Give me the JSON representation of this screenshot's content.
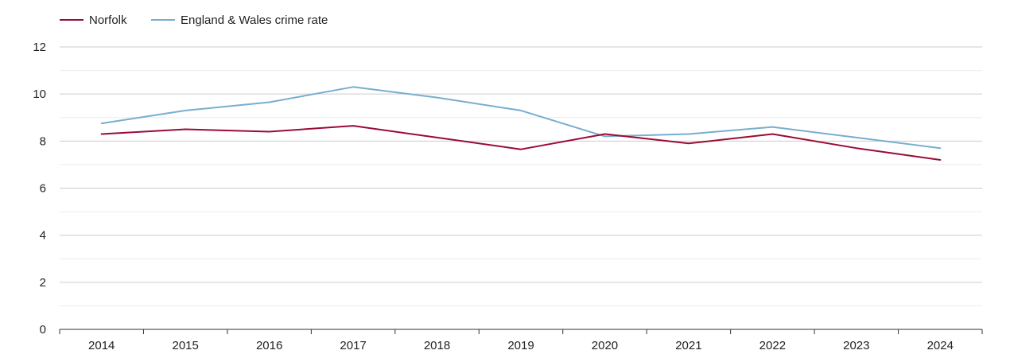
{
  "chart_data": {
    "type": "line",
    "title": "",
    "xlabel": "",
    "ylabel": "",
    "categories": [
      "2014",
      "2015",
      "2016",
      "2017",
      "2018",
      "2019",
      "2020",
      "2021",
      "2022",
      "2023",
      "2024"
    ],
    "ylim": [
      0,
      12
    ],
    "yticks": [
      "0",
      "2",
      "4",
      "6",
      "8",
      "10",
      "12"
    ],
    "grid": true,
    "legend_position": "top-left",
    "series": [
      {
        "name": "Norfolk",
        "color": "#9a0b35",
        "values": [
          8.3,
          8.5,
          8.4,
          8.65,
          8.15,
          7.65,
          8.3,
          7.9,
          8.3,
          7.7,
          7.2
        ]
      },
      {
        "name": "England & Wales crime rate",
        "color": "#77aecf",
        "values": [
          8.75,
          9.3,
          9.65,
          10.3,
          9.85,
          9.3,
          8.2,
          8.3,
          8.6,
          8.15,
          7.7
        ]
      }
    ]
  }
}
